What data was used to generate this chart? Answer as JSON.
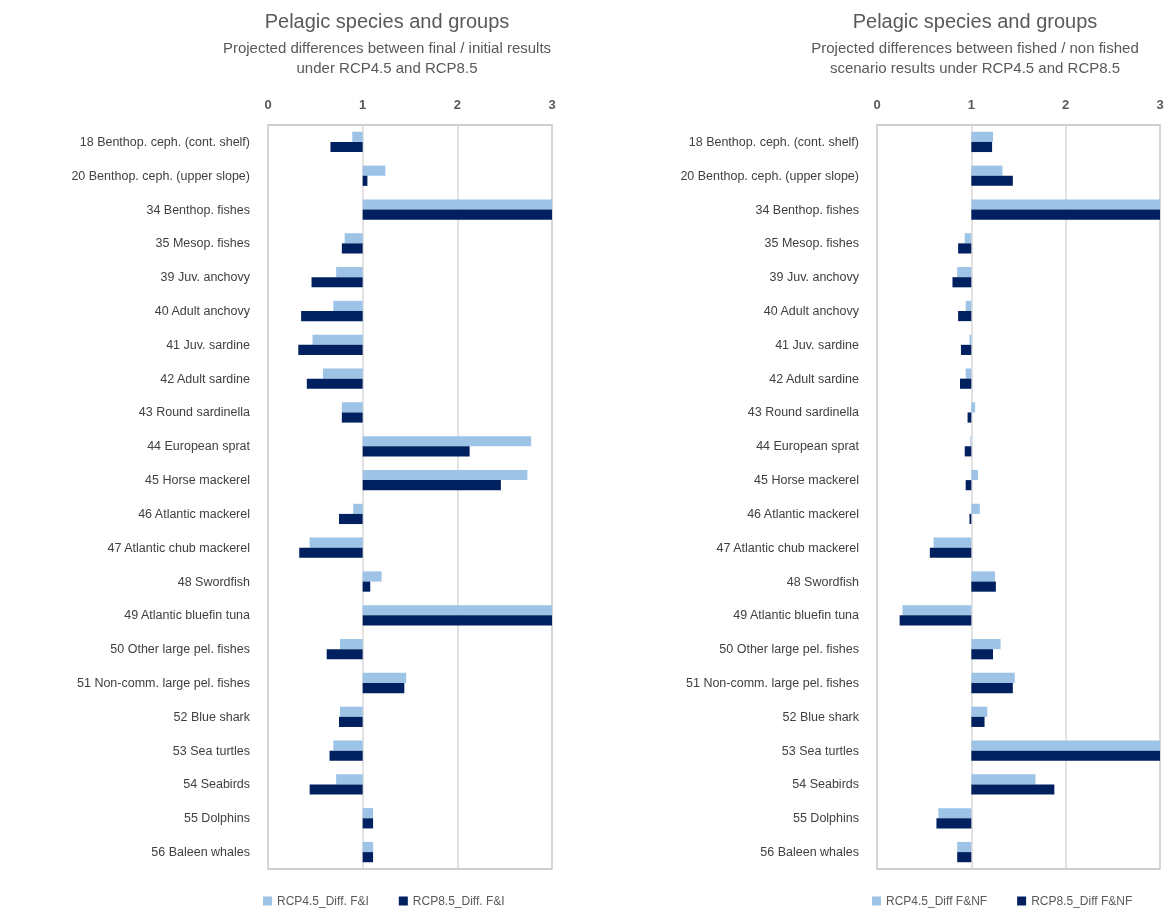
{
  "chart_data": [
    {
      "type": "bar",
      "orientation": "horizontal",
      "title": "Pelagic species and groups",
      "subtitle": "Projected differences between final / initial results under RCP4.5 and RCP8.5",
      "categories": [
        "18 Benthop. ceph. (cont. shelf)",
        "20 Benthop. ceph. (upper slope)",
        "34 Benthop. fishes",
        "35 Mesop. fishes",
        "39 Juv. anchovy",
        "40 Adult anchovy",
        "41 Juv. sardine",
        "42 Adult sardine",
        "43 Round sardinella",
        "44 European sprat",
        "45 Horse mackerel",
        "46 Atlantic mackerel",
        "47 Atlantic chub mackerel",
        "48 Swordfish",
        "49 Atlantic bluefin tuna",
        "50 Other large pel. fishes",
        "51 Non-comm. large pel. fishes",
        "52 Blue shark",
        "53 Sea turtles",
        "54 Seabirds",
        "55 Dolphins",
        "56 Baleen whales"
      ],
      "series": [
        {
          "name": "RCP4.5_Diff. F&I",
          "color": "#9dc3e6",
          "base": [
            1,
            1,
            1,
            1,
            1,
            1,
            1,
            1,
            1,
            1,
            1,
            1,
            1,
            1,
            1,
            1,
            1,
            1,
            1,
            1,
            1,
            1
          ],
          "values": [
            -0.11,
            0.24,
            2,
            -0.19,
            -0.28,
            -0.31,
            -0.53,
            -0.42,
            -0.22,
            1.78,
            1.74,
            -0.1,
            -0.56,
            0.2,
            2,
            -0.24,
            0.46,
            -0.24,
            -0.31,
            -0.28,
            0.11,
            0.11
          ]
        },
        {
          "name": "RCP8.5_Diff. F&I",
          "color": "#002060",
          "base": [
            1,
            1,
            1,
            1,
            1,
            1,
            1,
            1,
            1,
            1,
            1,
            1,
            1,
            1,
            1,
            1,
            1,
            1,
            1,
            1,
            1,
            1
          ],
          "values": [
            -0.34,
            0.05,
            2,
            -0.22,
            -0.54,
            -0.65,
            -0.68,
            -0.59,
            -0.22,
            1.13,
            1.46,
            -0.25,
            -0.67,
            0.08,
            2,
            -0.38,
            0.44,
            -0.25,
            -0.35,
            -0.56,
            0.11,
            0.11
          ]
        }
      ],
      "xlim": [
        0,
        3
      ],
      "xticks": [
        0,
        1,
        2,
        3
      ],
      "grid": "x",
      "legend": "bottom"
    },
    {
      "type": "bar",
      "orientation": "horizontal",
      "title": "Pelagic species and groups",
      "subtitle": "Projected differences between fished / non fished scenario results under RCP4.5 and RCP8.5",
      "categories": [
        "18 Benthop. ceph. (cont. shelf)",
        "20 Benthop. ceph. (upper slope)",
        "34 Benthop. fishes",
        "35 Mesop. fishes",
        "39 Juv. anchovy",
        "40 Adult anchovy",
        "41 Juv. sardine",
        "42 Adult sardine",
        "43 Round sardinella",
        "44 European sprat",
        "45 Horse mackerel",
        "46 Atlantic mackerel",
        "47 Atlantic chub mackerel",
        "48 Swordfish",
        "49 Atlantic bluefin tuna",
        "50 Other large pel. fishes",
        "51 Non-comm. large pel. fishes",
        "52 Blue shark",
        "53 Sea turtles",
        "54 Seabirds",
        "55 Dolphins",
        "56 Baleen whales"
      ],
      "series": [
        {
          "name": "RCP4.5_Diff F&NF",
          "color": "#9dc3e6",
          "base": [
            1,
            1,
            1,
            1,
            1,
            1,
            1,
            1,
            1,
            1,
            1,
            1,
            1,
            1,
            1,
            1,
            1,
            1,
            1,
            1,
            1,
            1
          ],
          "values": [
            0.23,
            0.33,
            2,
            -0.07,
            -0.15,
            -0.06,
            -0.02,
            -0.06,
            0.04,
            -0.01,
            0.07,
            0.09,
            -0.4,
            0.25,
            -0.73,
            0.31,
            0.46,
            0.17,
            2,
            0.68,
            -0.35,
            -0.15
          ]
        },
        {
          "name": "RCP8.5_Diff F&NF",
          "color": "#002060",
          "base": [
            1,
            1,
            1,
            1,
            1,
            1,
            1,
            1,
            1,
            1,
            1,
            1,
            1,
            1,
            1,
            1,
            1,
            1,
            1,
            1,
            1,
            1
          ],
          "values": [
            0.22,
            0.44,
            2,
            -0.14,
            -0.2,
            -0.14,
            -0.11,
            -0.12,
            -0.04,
            -0.07,
            -0.06,
            -0.02,
            -0.44,
            0.26,
            -0.76,
            0.23,
            0.44,
            0.14,
            2,
            0.88,
            -0.37,
            -0.15
          ]
        }
      ],
      "xlim": [
        0,
        3
      ],
      "xticks": [
        0,
        1,
        2,
        3
      ],
      "grid": "x",
      "legend": "bottom"
    }
  ]
}
